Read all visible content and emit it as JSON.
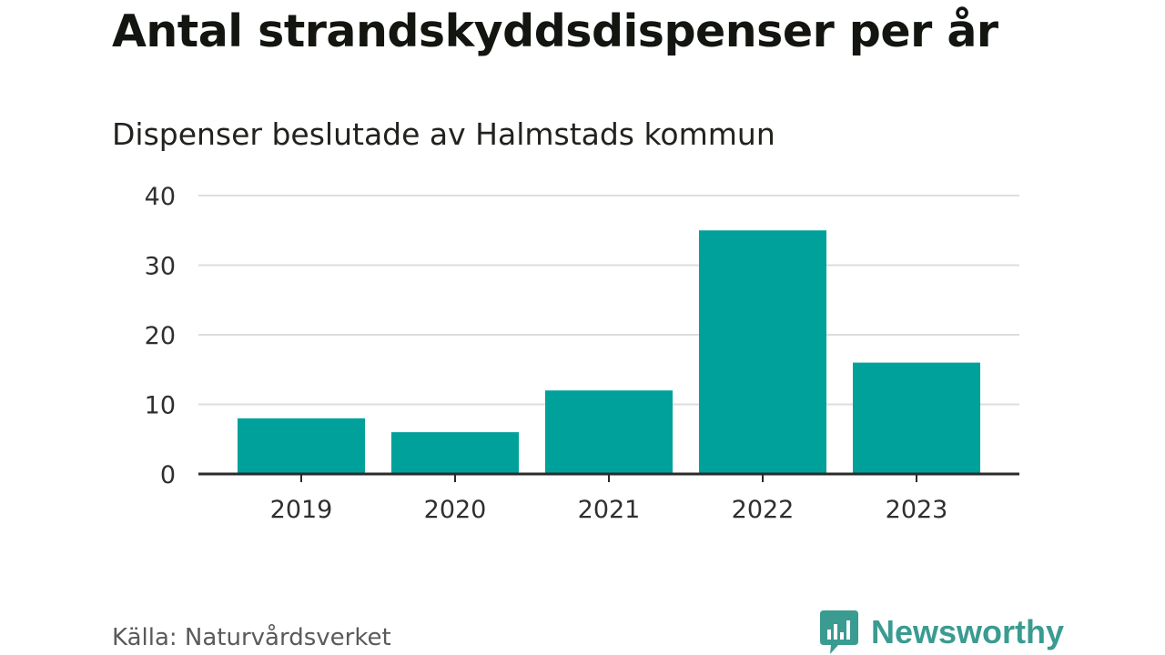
{
  "chart_data": {
    "type": "bar",
    "title": "Antal strandskyddsdispenser per år",
    "subtitle": "Dispenser beslutade av Halmstads kommun",
    "categories": [
      "2019",
      "2020",
      "2021",
      "2022",
      "2023"
    ],
    "values": [
      8,
      6,
      12,
      35,
      16
    ],
    "ylim": [
      0,
      40
    ],
    "yticks": [
      "0",
      "10",
      "20",
      "30",
      "40"
    ],
    "xlabel": "",
    "ylabel": "",
    "grid": true,
    "bar_color": "#00a19a",
    "grid_color": "#dedede",
    "axis_color": "#2b2b2b"
  },
  "footer": {
    "source": "Källa: Naturvårdsverket",
    "brand": "Newsworthy",
    "brand_color": "#3a9b91",
    "logo_icon": "newsworthy-bar-logo-icon"
  }
}
